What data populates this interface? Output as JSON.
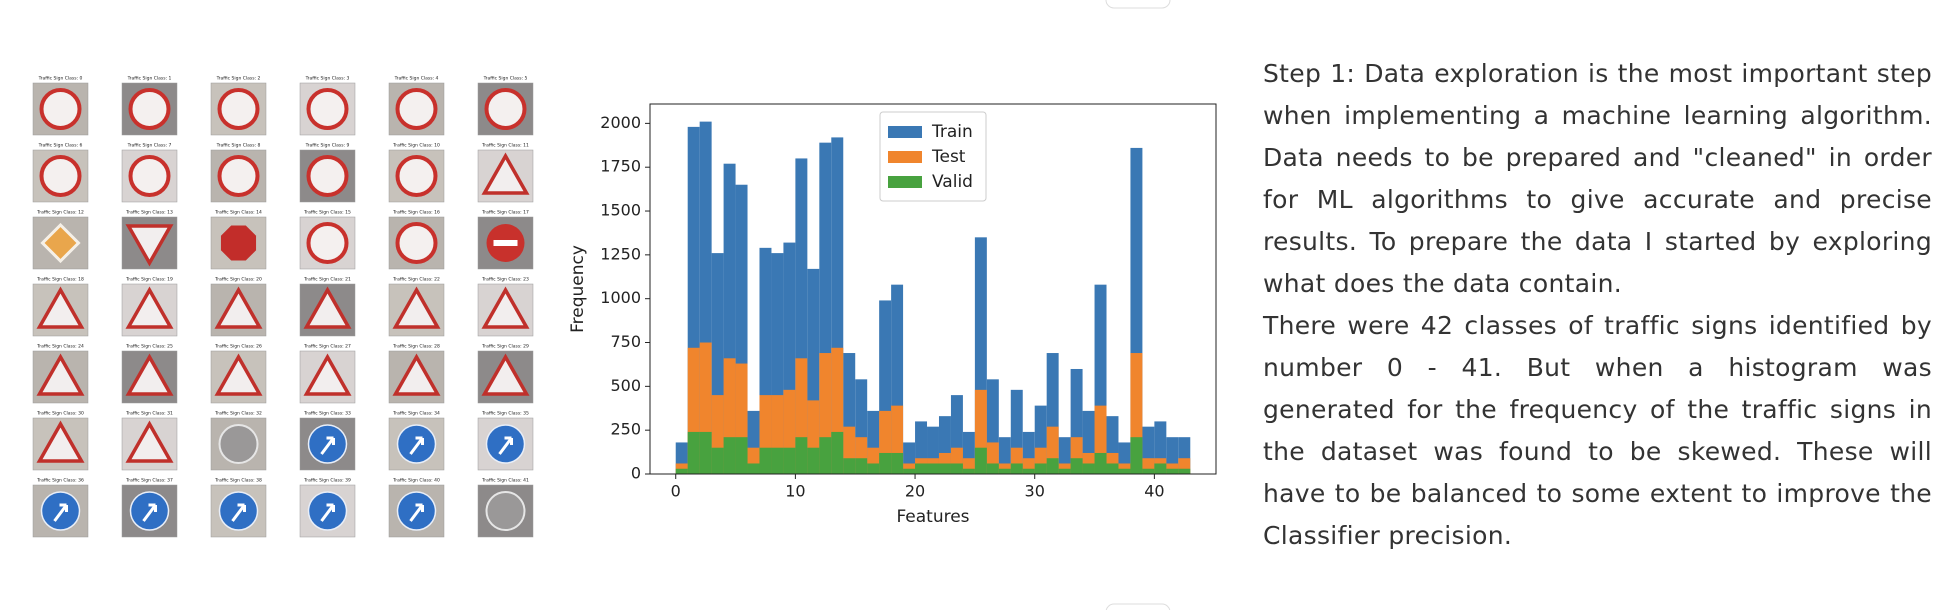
{
  "sign_grid": {
    "titles": [
      "Traffic Sign Class: 0",
      "Traffic Sign Class: 1",
      "Traffic Sign Class: 2",
      "Traffic Sign Class: 3",
      "Traffic Sign Class: 4",
      "Traffic Sign Class: 5",
      "Traffic Sign Class: 6",
      "Traffic Sign Class: 7",
      "Traffic Sign Class: 8",
      "Traffic Sign Class: 9",
      "Traffic Sign Class: 10",
      "Traffic Sign Class: 11",
      "Traffic Sign Class: 12",
      "Traffic Sign Class: 13",
      "Traffic Sign Class: 14",
      "Traffic Sign Class: 15",
      "Traffic Sign Class: 16",
      "Traffic Sign Class: 17",
      "Traffic Sign Class: 18",
      "Traffic Sign Class: 19",
      "Traffic Sign Class: 20",
      "Traffic Sign Class: 21",
      "Traffic Sign Class: 22",
      "Traffic Sign Class: 23",
      "Traffic Sign Class: 24",
      "Traffic Sign Class: 25",
      "Traffic Sign Class: 26",
      "Traffic Sign Class: 27",
      "Traffic Sign Class: 28",
      "Traffic Sign Class: 29",
      "Traffic Sign Class: 30",
      "Traffic Sign Class: 31",
      "Traffic Sign Class: 32",
      "Traffic Sign Class: 33",
      "Traffic Sign Class: 34",
      "Traffic Sign Class: 35",
      "Traffic Sign Class: 36",
      "Traffic Sign Class: 37",
      "Traffic Sign Class: 38",
      "Traffic Sign Class: 39",
      "Traffic Sign Class: 40",
      "Traffic Sign Class: 41"
    ]
  },
  "chart_data": {
    "type": "histogram",
    "xlabel": "Features",
    "ylabel": "Frequency",
    "bins": [
      0,
      1,
      2,
      3,
      4,
      5,
      6,
      7,
      8,
      9,
      10,
      11,
      12,
      13,
      14,
      15,
      16,
      17,
      18,
      19,
      20,
      21,
      22,
      23,
      24,
      25,
      26,
      27,
      28,
      29,
      30,
      31,
      32,
      33,
      34,
      35,
      36,
      37,
      38,
      39,
      40,
      41,
      42,
      43
    ],
    "series": [
      {
        "name": "Train",
        "color": "#3a78b4",
        "values": [
          180,
          1980,
          2010,
          1260,
          1770,
          1650,
          360,
          1290,
          1260,
          1320,
          1800,
          1170,
          1890,
          1920,
          690,
          540,
          360,
          990,
          1080,
          180,
          300,
          270,
          330,
          450,
          240,
          1350,
          540,
          210,
          480,
          240,
          390,
          690,
          210,
          599,
          360,
          1080,
          330,
          180,
          1860,
          270,
          300,
          210,
          210
        ]
      },
      {
        "name": "Test",
        "color": "#f0852d",
        "values": [
          60,
          720,
          750,
          450,
          660,
          630,
          150,
          450,
          450,
          480,
          660,
          420,
          690,
          720,
          270,
          210,
          150,
          360,
          390,
          60,
          90,
          90,
          120,
          150,
          90,
          480,
          180,
          60,
          150,
          90,
          150,
          270,
          60,
          210,
          120,
          390,
          120,
          60,
          690,
          90,
          90,
          60,
          90
        ]
      },
      {
        "name": "Valid",
        "color": "#48a23f",
        "values": [
          30,
          240,
          240,
          150,
          210,
          210,
          60,
          150,
          150,
          150,
          210,
          150,
          210,
          240,
          90,
          90,
          60,
          120,
          120,
          30,
          60,
          60,
          60,
          60,
          30,
          150,
          60,
          30,
          60,
          30,
          60,
          90,
          30,
          90,
          60,
          120,
          60,
          30,
          210,
          30,
          60,
          30,
          30
        ]
      }
    ],
    "xlim": [
      -2.15,
      45.15
    ],
    "ylim": [
      0,
      2110.5
    ],
    "xticks": [
      0,
      10,
      20,
      30,
      40
    ],
    "yticks": [
      0,
      250,
      500,
      750,
      1000,
      1250,
      1500,
      1750,
      2000
    ],
    "legend": "upper center"
  },
  "text": {
    "paragraphs": [
      "Step 1: Data exploration is the most important step when implementing a machine learning algorithm. Data needs to be prepared and \"cleaned\" in order for ML algorithms to give accurate and precise results. To prepare the data I started by exploring what does the data contain.",
      "There were 42 classes of traffic signs identified by number 0 - 41. But when a histogram was generated for the frequency of the traffic signs in the dataset was found to be skewed. These will have to be balanced to some extent to improve the Classifier precision."
    ]
  }
}
